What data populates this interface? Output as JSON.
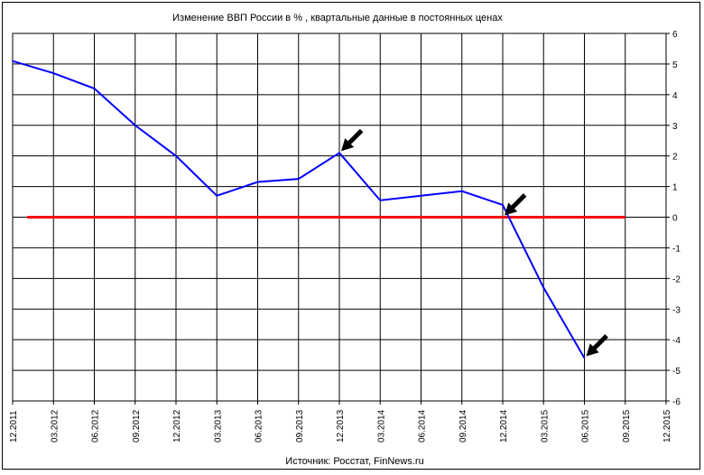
{
  "chart_data": {
    "type": "line",
    "title": "Изменение ВВП России в % , квартальные данные в постоянных ценах",
    "source": "Источник: Росстат, FinNews.ru",
    "x_ticks": [
      "12.2011",
      "03.2012",
      "06.2012",
      "09.2012",
      "12.2012",
      "03.2013",
      "06.2013",
      "09.2013",
      "12.2013",
      "03.2014",
      "06.2014",
      "09.2014",
      "12.2014",
      "03.2015",
      "06.2015",
      "09.2015",
      "12.2015"
    ],
    "y_ticks": [
      "-6",
      "-5",
      "-4",
      "-3",
      "-2",
      "-1",
      "0",
      "1",
      "2",
      "3",
      "4",
      "5",
      "6"
    ],
    "ylim": [
      -6,
      6
    ],
    "y_axis_side": "right",
    "grid": true,
    "series": [
      {
        "color": "#0000ff",
        "x": [
          "12.2011",
          "03.2012",
          "06.2012",
          "09.2012",
          "12.2012",
          "03.2013",
          "06.2013",
          "09.2013",
          "12.2013",
          "03.2014",
          "06.2014",
          "09.2014",
          "12.2014",
          "03.2015",
          "06.2015"
        ],
        "values": [
          5.1,
          4.7,
          4.2,
          3.0,
          2.0,
          0.7,
          1.15,
          1.25,
          2.1,
          0.55,
          0.7,
          0.85,
          0.4,
          -2.3,
          -4.6
        ]
      },
      {
        "color": "#ff0000",
        "x": [
          "12.2011",
          "09.2015"
        ],
        "values": [
          0,
          0
        ]
      }
    ],
    "annotations": [
      {
        "type": "arrow",
        "at_x": "12.2013",
        "at_y": 2.1,
        "color": "#000000"
      },
      {
        "type": "arrow",
        "at_x": "12.2014",
        "at_y": 0.0,
        "color": "#000000"
      },
      {
        "type": "arrow",
        "at_x": "06.2015",
        "at_y": -4.6,
        "color": "#000000"
      }
    ]
  }
}
